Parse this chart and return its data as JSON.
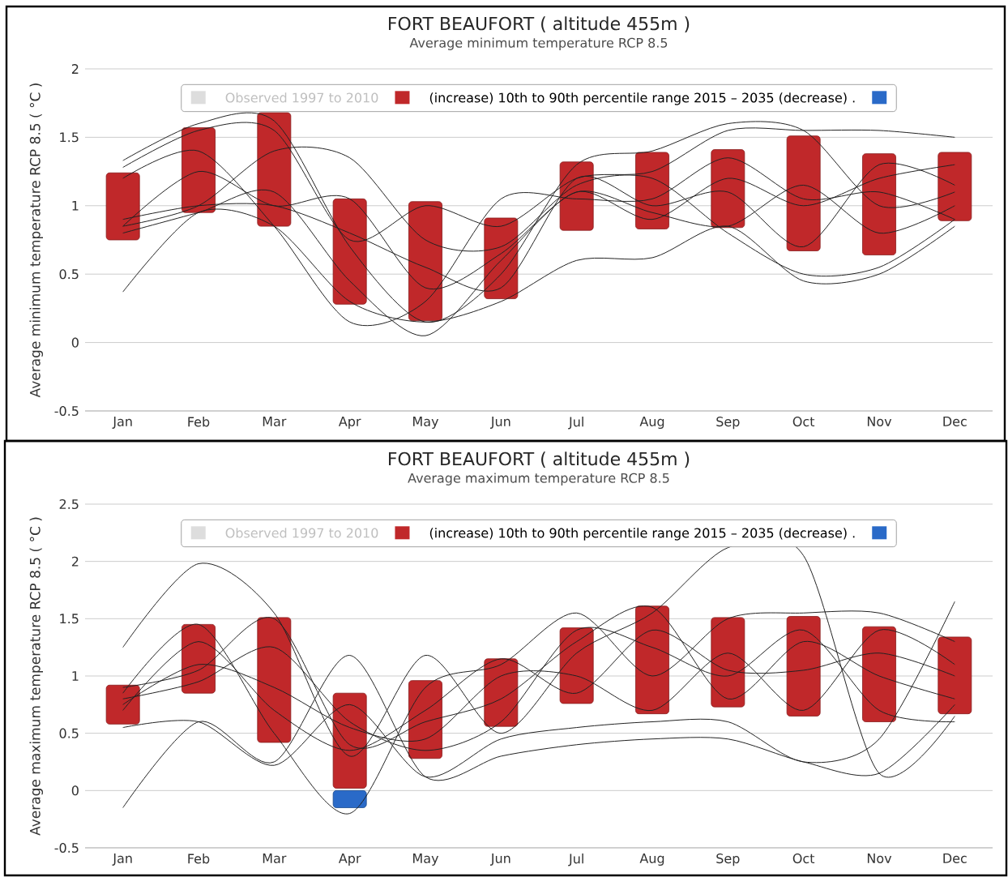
{
  "chart_data": [
    {
      "type": "bar",
      "title": "FORT BEAUFORT ( altitude 455m )",
      "subtitle": "Average minimum temperature RCP 8.5",
      "ylabel": "Average minimum temperature RCP 8.5 ( °C )",
      "categories": [
        "Jan",
        "Feb",
        "Mar",
        "Apr",
        "May",
        "Jun",
        "Jul",
        "Aug",
        "Sep",
        "Oct",
        "Nov",
        "Dec"
      ],
      "ylim": [
        -0.5,
        2
      ],
      "yticks": [
        -0.5,
        0,
        0.5,
        1,
        1.5,
        2
      ],
      "grid": "y",
      "legend": "top",
      "series": [
        {
          "name": "Observed 1997 to 2010",
          "color": "#dddddd",
          "values": [
            null,
            null,
            null,
            null,
            null,
            null,
            null,
            null,
            null,
            null,
            null,
            null
          ]
        },
        {
          "name": "(increase) 10th to 90th percentile range 2015 – 2035 (decrease) .",
          "color": "#c0282a",
          "base": [
            0.75,
            0.95,
            0.85,
            0.28,
            0.16,
            0.32,
            0.82,
            0.83,
            0.84,
            0.67,
            0.64,
            0.89
          ],
          "values": [
            0.49,
            0.62,
            0.83,
            0.77,
            0.87,
            0.59,
            0.5,
            0.56,
            0.57,
            0.84,
            0.74,
            0.5
          ]
        },
        {
          "color": "#2a6ac8",
          "base": [
            null,
            null,
            null,
            null,
            null,
            null,
            null,
            null,
            null,
            null,
            null,
            null
          ],
          "values": [
            null,
            null,
            null,
            null,
            null,
            null,
            null,
            null,
            null,
            null,
            null,
            null
          ]
        },
        {
          "type": "line",
          "color": "#222222",
          "values": [
            0.37,
            0.95,
            0.85,
            0.3,
            0.15,
            0.3,
            0.6,
            0.62,
            0.85,
            0.45,
            0.5,
            0.85
          ]
        },
        {
          "type": "line",
          "color": "#222222",
          "values": [
            1.33,
            1.6,
            1.62,
            0.7,
            0.15,
            0.5,
            1.3,
            1.4,
            1.6,
            1.55,
            1.0,
            1.1
          ]
        },
        {
          "type": "line",
          "color": "#222222",
          "values": [
            1.28,
            1.55,
            1.55,
            0.75,
            1.0,
            0.85,
            1.2,
            1.25,
            1.55,
            1.55,
            1.55,
            1.5
          ]
        },
        {
          "type": "line",
          "color": "#222222",
          "values": [
            0.85,
            1.0,
            1.4,
            1.35,
            0.75,
            0.7,
            1.15,
            1.2,
            0.8,
            0.5,
            0.55,
            0.9
          ]
        },
        {
          "type": "line",
          "color": "#222222",
          "values": [
            0.8,
            0.95,
            1.1,
            0.45,
            0.05,
            0.6,
            1.1,
            0.9,
            1.2,
            1.0,
            1.2,
            1.3
          ]
        },
        {
          "type": "line",
          "color": "#222222",
          "values": [
            0.85,
            1.25,
            1.0,
            1.05,
            0.4,
            0.65,
            1.1,
            0.95,
            0.85,
            1.15,
            0.8,
            1.0
          ]
        },
        {
          "type": "line",
          "color": "#222222",
          "values": [
            1.2,
            1.4,
            0.85,
            0.15,
            0.3,
            1.05,
            1.05,
            1.05,
            1.35,
            1.05,
            1.1,
            0.9
          ]
        },
        {
          "type": "line",
          "color": "#222222",
          "values": [
            0.9,
            1.0,
            1.0,
            0.8,
            0.55,
            0.4,
            1.2,
            1.0,
            1.1,
            0.7,
            1.3,
            1.15
          ]
        }
      ]
    },
    {
      "type": "bar",
      "title": "FORT BEAUFORT ( altitude 455m )",
      "subtitle": "Average maximum temperature RCP 8.5",
      "ylabel": "Average maximum temperature RCP 8.5 ( °C )",
      "categories": [
        "Jan",
        "Feb",
        "Mar",
        "Apr",
        "May",
        "Jun",
        "Jul",
        "Aug",
        "Sep",
        "Oct",
        "Nov",
        "Dec"
      ],
      "ylim": [
        -0.5,
        2.5
      ],
      "yticks": [
        -0.5,
        0,
        0.5,
        1,
        1.5,
        2,
        2.5
      ],
      "grid": "y",
      "legend": "top",
      "series": [
        {
          "name": "Observed 1997 to 2010",
          "color": "#dddddd",
          "values": [
            null,
            null,
            null,
            null,
            null,
            null,
            null,
            null,
            null,
            null,
            null,
            null
          ]
        },
        {
          "name": "(increase) 10th to 90th percentile range 2015 – 2035 (decrease) .",
          "color": "#c0282a",
          "base": [
            0.58,
            0.85,
            0.42,
            0.02,
            0.28,
            0.56,
            0.76,
            0.67,
            0.73,
            0.65,
            0.6,
            0.67
          ],
          "values": [
            0.34,
            0.6,
            1.09,
            0.83,
            0.68,
            0.59,
            0.66,
            0.94,
            0.78,
            0.87,
            0.83,
            0.67
          ]
        },
        {
          "color": "#2a6ac8",
          "base": [
            null,
            null,
            null,
            -0.15,
            null,
            null,
            null,
            null,
            null,
            null,
            null,
            null
          ],
          "values": [
            null,
            null,
            null,
            0.15,
            null,
            null,
            null,
            null,
            null,
            null,
            null,
            null
          ]
        },
        {
          "type": "line",
          "color": "#222222",
          "values": [
            -0.15,
            0.6,
            0.25,
            1.18,
            0.12,
            0.3,
            0.4,
            0.45,
            0.45,
            0.25,
            0.15,
            0.75
          ]
        },
        {
          "type": "line",
          "color": "#222222",
          "values": [
            1.25,
            1.98,
            1.55,
            0.3,
            1.18,
            0.5,
            1.2,
            1.55,
            2.12,
            2.05,
            0.15,
            0.65
          ]
        },
        {
          "type": "line",
          "color": "#222222",
          "values": [
            0.55,
            0.6,
            0.22,
            0.75,
            0.12,
            0.45,
            0.55,
            0.6,
            0.6,
            0.25,
            0.45,
            1.65
          ]
        },
        {
          "type": "line",
          "color": "#222222",
          "values": [
            0.85,
            1.45,
            0.5,
            -0.2,
            0.9,
            1.1,
            1.55,
            1.0,
            1.5,
            1.55,
            1.55,
            1.3
          ]
        },
        {
          "type": "line",
          "color": "#222222",
          "values": [
            0.9,
            1.05,
            1.5,
            0.4,
            0.6,
            0.8,
            1.3,
            1.6,
            0.8,
            1.3,
            1.0,
            0.8
          ]
        },
        {
          "type": "line",
          "color": "#222222",
          "values": [
            0.75,
            1.1,
            0.9,
            0.55,
            0.45,
            1.0,
            1.0,
            0.7,
            1.2,
            0.7,
            1.4,
            1.1
          ]
        },
        {
          "type": "line",
          "color": "#222222",
          "values": [
            0.8,
            0.95,
            1.25,
            0.6,
            0.35,
            0.6,
            1.4,
            1.25,
            1.0,
            1.4,
            0.7,
            0.6
          ]
        },
        {
          "type": "line",
          "color": "#222222",
          "values": [
            0.7,
            1.3,
            0.7,
            0.35,
            0.7,
            1.15,
            0.85,
            1.4,
            1.05,
            1.05,
            1.2,
            1.0
          ]
        }
      ]
    }
  ]
}
